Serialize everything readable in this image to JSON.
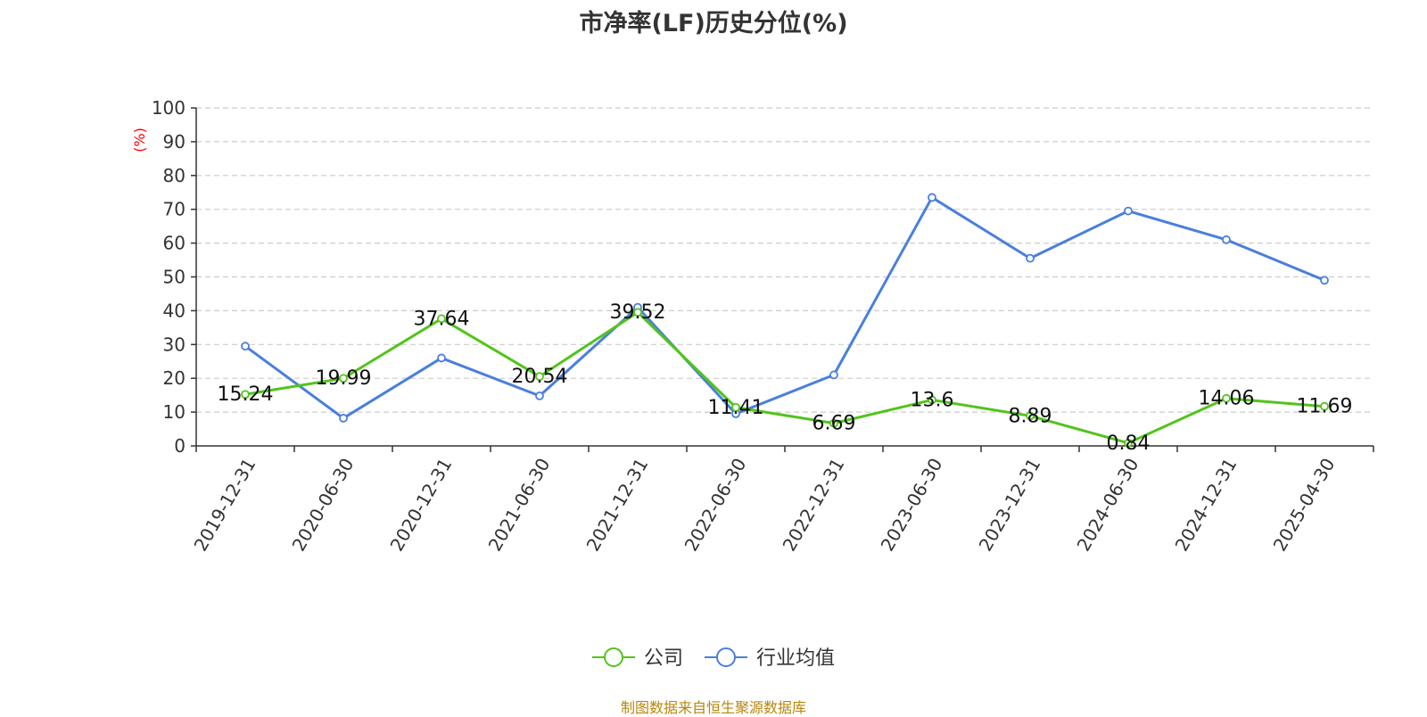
{
  "title": "市净率(LF)历史分位(%)",
  "footer": "制图数据来自恒生聚源数据库",
  "chart_data": {
    "type": "line",
    "title": "市净率(LF)历史分位(%)",
    "ylabel": "(%)",
    "ylabel_color": "#ff0000",
    "xlabel": "",
    "ylim": [
      0,
      100
    ],
    "yticks": [
      0,
      10,
      20,
      30,
      40,
      50,
      60,
      70,
      80,
      90,
      100
    ],
    "grid": true,
    "legend_position": "bottom-center",
    "categories": [
      "2019-12-31",
      "2020-06-30",
      "2020-12-31",
      "2021-06-30",
      "2021-12-31",
      "2022-06-30",
      "2022-12-31",
      "2023-06-30",
      "2023-12-31",
      "2024-06-30",
      "2024-12-31",
      "2025-04-30"
    ],
    "series": [
      {
        "name": "公司",
        "color": "#52c41a",
        "values": [
          15.24,
          19.99,
          37.64,
          20.54,
          39.52,
          11.41,
          6.69,
          13.6,
          8.89,
          0.84,
          14.06,
          11.69
        ],
        "labels": [
          "15.24",
          "19.99",
          "37.64",
          "20.54",
          "39.52",
          "11.41",
          "6.69",
          "13.6",
          "8.89",
          "0.84",
          "14.06",
          "11.69"
        ]
      },
      {
        "name": "行业均值",
        "color": "#4a7fdc",
        "values": [
          29.5,
          8.2,
          26.0,
          14.8,
          41.0,
          9.5,
          21.0,
          73.5,
          55.5,
          69.5,
          61.0,
          49.0
        ]
      }
    ]
  }
}
